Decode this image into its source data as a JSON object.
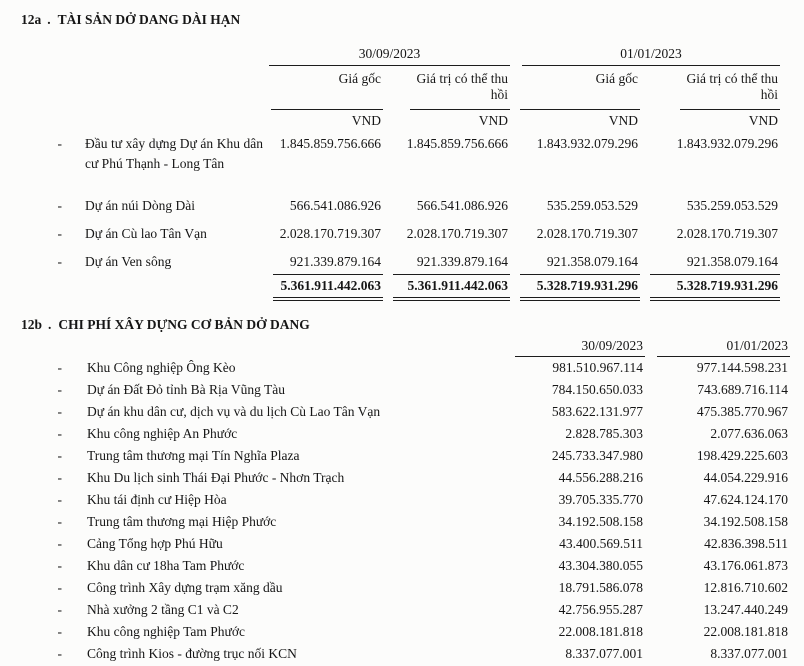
{
  "page": {
    "bullet": "-",
    "unit": "VND"
  },
  "section_a": {
    "id": "12a",
    "sep": ".",
    "title": "TÀI SẢN DỞ DANG DÀI HẠN",
    "periods": [
      "30/09/2023",
      "01/01/2023"
    ],
    "sub_headers": {
      "cost": "Giá gốc",
      "recoverable": "Giá trị có thể thu hồi"
    },
    "rows": [
      {
        "label": "Đầu tư xây dựng Dự án Khu dân cư Phú Thạnh - Long Tân",
        "values": [
          "1.845.859.756.666",
          "1.845.859.756.666",
          "1.843.932.079.296",
          "1.843.932.079.296"
        ]
      },
      {
        "label": "Dự án núi Dòng Dài",
        "values": [
          "566.541.086.926",
          "566.541.086.926",
          "535.259.053.529",
          "535.259.053.529"
        ]
      },
      {
        "label": "Dự án Cù lao Tân Vạn",
        "values": [
          "2.028.170.719.307",
          "2.028.170.719.307",
          "2.028.170.719.307",
          "2.028.170.719.307"
        ]
      },
      {
        "label": "Dự án Ven sông",
        "values": [
          "921.339.879.164",
          "921.339.879.164",
          "921.358.079.164",
          "921.358.079.164"
        ]
      }
    ],
    "total": [
      "5.361.911.442.063",
      "5.361.911.442.063",
      "5.328.719.931.296",
      "5.328.719.931.296"
    ]
  },
  "section_b": {
    "id": "12b",
    "sep": ".",
    "title": "CHI PHÍ XÂY DỰNG CƠ BẢN DỞ DANG",
    "periods": [
      "30/09/2023",
      "01/01/2023"
    ],
    "rows": [
      {
        "label": "Khu Công nghiệp Ông Kèo",
        "values": [
          "981.510.967.114",
          "977.144.598.231"
        ]
      },
      {
        "label": "Dự án Đất Đỏ tỉnh Bà Rịa Vũng Tàu",
        "values": [
          "784.150.650.033",
          "743.689.716.114"
        ]
      },
      {
        "label": "Dự án khu dân cư, dịch vụ và du lịch Cù Lao Tân Vạn",
        "values": [
          "583.622.131.977",
          "475.385.770.967"
        ]
      },
      {
        "label": "Khu công nghiệp An Phước",
        "values": [
          "2.828.785.303",
          "2.077.636.063"
        ]
      },
      {
        "label": "Trung tâm thương mại Tín Nghĩa Plaza",
        "values": [
          "245.733.347.980",
          "198.429.225.603"
        ]
      },
      {
        "label": "Khu Du lịch sinh Thái Đại Phước - Nhơn Trạch",
        "values": [
          "44.556.288.216",
          "44.054.229.916"
        ]
      },
      {
        "label": "Khu tái định cư Hiệp Hòa",
        "values": [
          "39.705.335.770",
          "47.624.124.170"
        ]
      },
      {
        "label": "Trung tâm thương mại Hiệp Phước",
        "values": [
          "34.192.508.158",
          "34.192.508.158"
        ]
      },
      {
        "label": "Cảng Tổng hợp Phú Hữu",
        "values": [
          "43.400.569.511",
          "42.836.398.511"
        ]
      },
      {
        "label": "Khu dân cư 18ha Tam Phước",
        "values": [
          "43.304.380.055",
          "43.176.061.873"
        ]
      },
      {
        "label": "Công trình Xây dựng trạm xăng dầu",
        "values": [
          "18.791.586.078",
          "12.816.710.602"
        ]
      },
      {
        "label": "Nhà xưởng 2 tầng C1 và C2",
        "values": [
          "42.756.955.287",
          "13.247.440.249"
        ]
      },
      {
        "label": "Khu công nghiệp Tam Phước",
        "values": [
          "22.008.181.818",
          "22.008.181.818"
        ]
      },
      {
        "label": "Công trình Kios - đường trục nối KCN",
        "values": [
          "8.337.077.001",
          "8.337.077.001"
        ]
      }
    ]
  }
}
